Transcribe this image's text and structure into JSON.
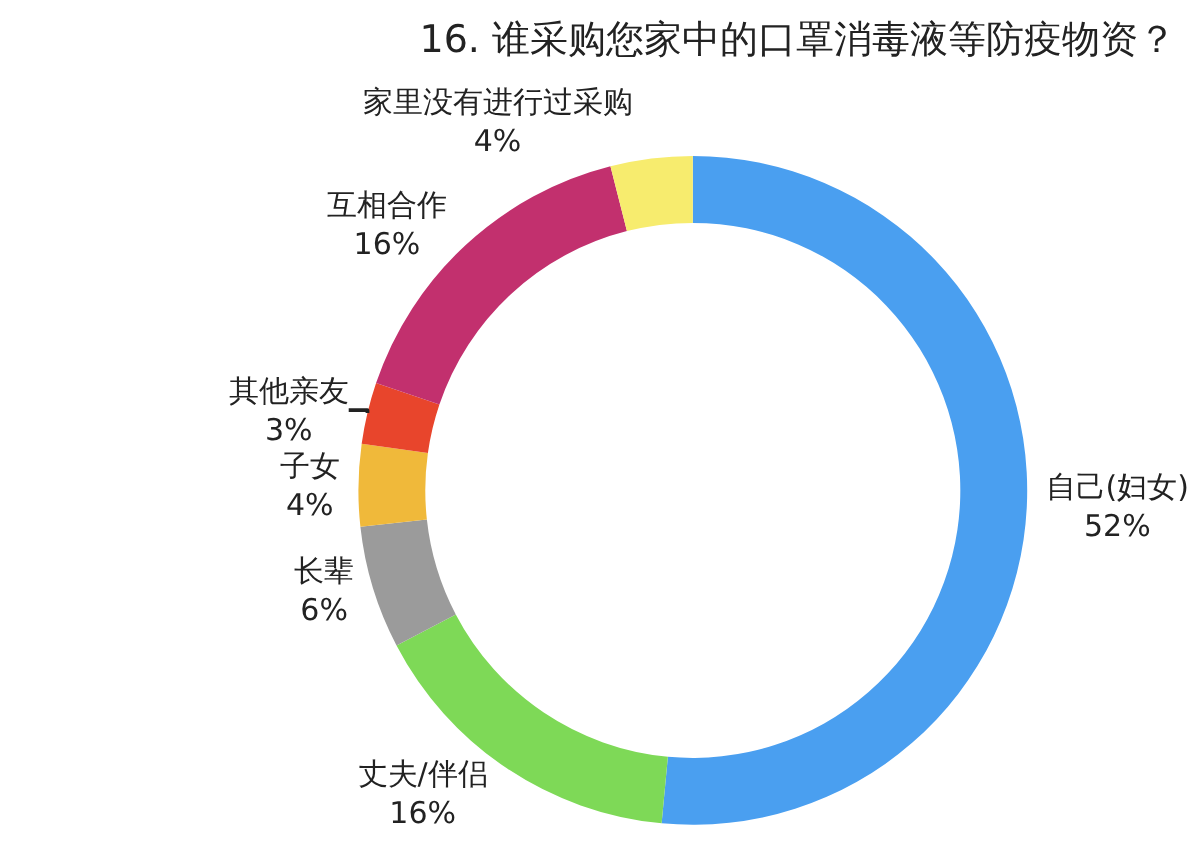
{
  "chart_data": {
    "type": "donut",
    "title": "16. 谁采购您家中的口罩消毒液等防疫物资？",
    "categories": [
      "自己(妇女)",
      "丈夫/伴侣",
      "长辈",
      "子女",
      "其他亲友",
      "互相合作",
      "家里没有进行过采购"
    ],
    "values": [
      52,
      16,
      6,
      4,
      3,
      16,
      4
    ],
    "value_labels": [
      "52%",
      "16%",
      "6%",
      "4%",
      "3%",
      "16%",
      "4%"
    ],
    "colors": [
      "#4a9ff0",
      "#7ed957",
      "#9b9b9b",
      "#f0b93a",
      "#e8452c",
      "#c2306e",
      "#f7ec6e"
    ],
    "legend": false
  }
}
